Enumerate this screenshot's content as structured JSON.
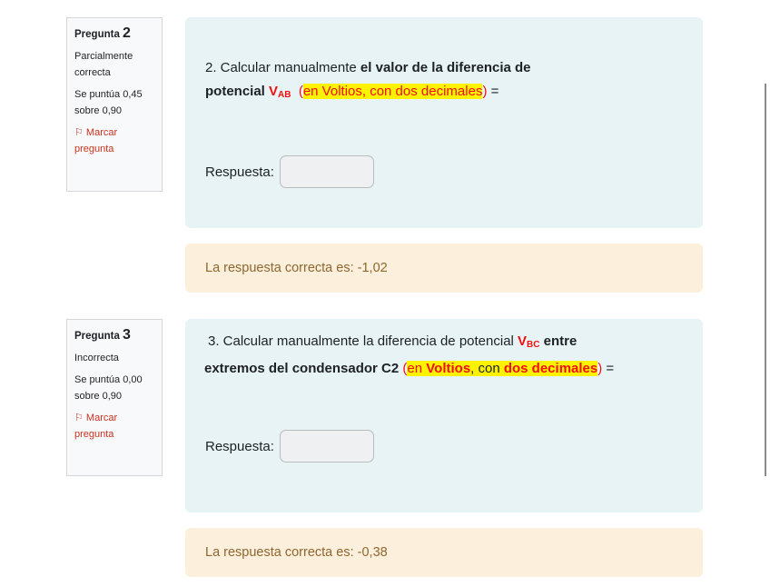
{
  "questions": [
    {
      "label": "Pregunta",
      "number": "2",
      "state": "Parcialmente correcta",
      "grade": "Se puntúa 0,45 sobre 0,90",
      "flag": "Marcar pregunta",
      "text_line1": [
        {
          "t": "2. Calcular manualmente ",
          "c": ""
        },
        {
          "t": "el valor de la diferencia de",
          "c": "b"
        }
      ],
      "text_line2_pre": "potencial ",
      "var": "V",
      "sub": "AB",
      "text_line2": [
        {
          "t": "(",
          "c": "red"
        },
        {
          "t": "en Voltios, con dos decimales",
          "c": "red hl"
        },
        {
          "t": ")",
          "c": "red"
        },
        {
          "t": " =",
          "c": ""
        }
      ],
      "answer_label": "Respuesta:",
      "answer_value": "",
      "feedback": "La respuesta correcta es: -1,02"
    },
    {
      "label": "Pregunta",
      "number": "3",
      "state": "Incorrecta",
      "grade": "Se puntúa 0,00 sobre 0,90",
      "flag": "Marcar pregunta",
      "text_line1_pre": "3. Calcular manualmente la diferencia de potencial ",
      "var": "V",
      "sub": "BC",
      "text_line1_post": " entre",
      "text_line2": [
        {
          "t": "extremos del condensador C2 ",
          "c": "b"
        },
        {
          "t": "(",
          "c": "red"
        },
        {
          "t": "en ",
          "c": "red hl"
        },
        {
          "t": "Voltios",
          "c": "red hl b"
        },
        {
          "t": ", con ",
          "c": "hl"
        },
        {
          "t": "dos decimales",
          "c": "red hl b"
        },
        {
          "t": ")",
          "c": "red"
        },
        {
          "t": " =",
          "c": ""
        }
      ],
      "answer_label": "Respuesta:",
      "answer_value": "",
      "feedback": "La respuesta correcta es: -0,38"
    }
  ],
  "colors": {
    "info_bg": "#e7f3f5",
    "feedback_bg": "#fcefdc",
    "feedback_text": "#8e662e",
    "flag": "#ca3120",
    "highlight": "#fff200",
    "red": "#f01010"
  }
}
